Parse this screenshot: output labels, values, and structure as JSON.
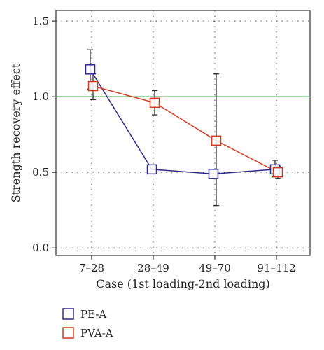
{
  "chart_data": {
    "type": "line",
    "categories": [
      "7–28",
      "28–49",
      "49–70",
      "91–112"
    ],
    "xlabel": "Case (1st loading-2nd loading)",
    "ylabel": "Strength recovery effect",
    "ylim": [
      -0.05,
      1.57
    ],
    "yticks": [
      0.0,
      0.5,
      1.0,
      1.5
    ],
    "ytick_labels": [
      "0.0",
      "0.5",
      "1.0",
      "1.5"
    ],
    "grid": true,
    "reference_line": {
      "y": 1.0,
      "color": "#3aa64a"
    },
    "legend_position": "bottom-left",
    "series": [
      {
        "name": "PE-A",
        "color": "#2e2a8a",
        "values": [
          1.18,
          0.52,
          0.49,
          0.52
        ],
        "errors": [
          [
            1.05,
            1.31
          ],
          null,
          null,
          [
            0.47,
            0.58
          ]
        ]
      },
      {
        "name": "PVA-A",
        "color": "#d23a23",
        "values": [
          1.07,
          0.96,
          0.71,
          0.5
        ],
        "errors": [
          [
            0.98,
            1.15
          ],
          [
            0.88,
            1.04
          ],
          [
            0.28,
            1.15
          ],
          [
            0.46,
            0.54
          ]
        ]
      }
    ]
  }
}
